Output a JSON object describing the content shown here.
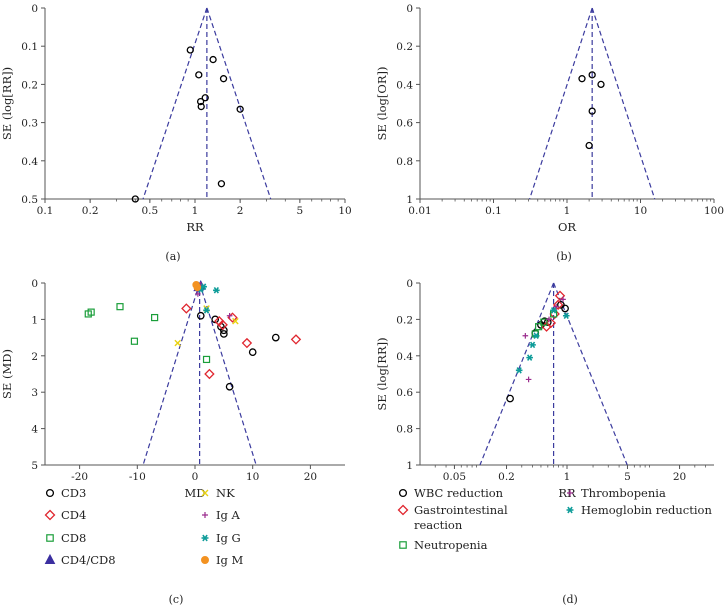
{
  "chart_data": [
    {
      "panel": "(a)",
      "type": "scatter",
      "subtype": "funnel",
      "xscale": "log",
      "xlabel": "RR",
      "ylabel": "SE (log[RR])",
      "xlim": [
        0.1,
        10
      ],
      "ylim": [
        0.5,
        0
      ],
      "xticks": [
        0.1,
        0.2,
        0.5,
        1,
        2,
        5,
        10
      ],
      "xtick_labels": [
        "0.1",
        "0.2",
        "0.5",
        "1",
        "2",
        "5",
        "10"
      ],
      "yticks": [
        0,
        0.1,
        0.2,
        0.3,
        0.4,
        0.5
      ],
      "ytick_labels": [
        "0",
        "0.1",
        "0.2",
        "0.3",
        "0.4",
        "0.5"
      ],
      "pooled": 1.2,
      "points": [
        {
          "x": 0.93,
          "y": 0.11
        },
        {
          "x": 1.32,
          "y": 0.135
        },
        {
          "x": 1.06,
          "y": 0.175
        },
        {
          "x": 1.55,
          "y": 0.185
        },
        {
          "x": 1.17,
          "y": 0.235
        },
        {
          "x": 1.09,
          "y": 0.245
        },
        {
          "x": 1.1,
          "y": 0.258
        },
        {
          "x": 2.0,
          "y": 0.265
        },
        {
          "x": 1.5,
          "y": 0.46
        },
        {
          "x": 0.4,
          "y": 0.5
        }
      ]
    },
    {
      "panel": "(b)",
      "type": "scatter",
      "subtype": "funnel",
      "xscale": "log",
      "xlabel": "OR",
      "ylabel": "SE (log[OR])",
      "xlim": [
        0.01,
        100
      ],
      "ylim": [
        1,
        0
      ],
      "xticks": [
        0.01,
        0.1,
        1,
        10,
        100
      ],
      "xtick_labels": [
        "0.01",
        "0.1",
        "1",
        "10",
        "100"
      ],
      "yticks": [
        0,
        0.2,
        0.4,
        0.6,
        0.8,
        1
      ],
      "ytick_labels": [
        "0",
        "0.2",
        "0.4",
        "0.6",
        "0.8",
        "1"
      ],
      "pooled": 2.2,
      "points": [
        {
          "x": 2.2,
          "y": 0.35
        },
        {
          "x": 1.6,
          "y": 0.37
        },
        {
          "x": 2.9,
          "y": 0.4
        },
        {
          "x": 2.2,
          "y": 0.54
        },
        {
          "x": 2.0,
          "y": 0.72
        }
      ]
    },
    {
      "panel": "(c)",
      "type": "scatter",
      "subtype": "funnel",
      "xscale": "linear",
      "xlabel": "MD",
      "ylabel": "SE (MD)",
      "xlim": [
        -26,
        26
      ],
      "ylim": [
        5,
        0
      ],
      "xticks": [
        -20,
        -10,
        0,
        10,
        20
      ],
      "xtick_labels": [
        "-20",
        "-10",
        "0",
        "10",
        "20"
      ],
      "yticks": [
        0,
        1,
        2,
        3,
        4,
        5
      ],
      "ytick_labels": [
        "0",
        "1",
        "2",
        "3",
        "4",
        "5"
      ],
      "pooled": 0.8,
      "series": [
        {
          "name": "CD3",
          "marker": "circle",
          "color": "#000000",
          "points": [
            [
              1,
              0.9
            ],
            [
              3.5,
              1.0
            ],
            [
              5,
              1.3
            ],
            [
              5,
              1.4
            ],
            [
              6,
              2.85
            ],
            [
              10,
              1.9
            ],
            [
              14,
              1.5
            ],
            [
              4.5,
              1.2
            ]
          ]
        },
        {
          "name": "CD4",
          "marker": "diamond",
          "color": "#e0262f",
          "points": [
            [
              -1.5,
              0.7
            ],
            [
              4.2,
              1.05
            ],
            [
              4.8,
              1.15
            ],
            [
              6.5,
              0.95
            ],
            [
              9,
              1.65
            ],
            [
              17.5,
              1.55
            ],
            [
              2.5,
              2.5
            ]
          ]
        },
        {
          "name": "CD8",
          "marker": "square",
          "color": "#1a9e3a",
          "points": [
            [
              -18.5,
              0.85
            ],
            [
              -18,
              0.8
            ],
            [
              -13,
              0.65
            ],
            [
              -7,
              0.95
            ],
            [
              -10.5,
              1.6
            ],
            [
              2,
              2.1
            ]
          ]
        },
        {
          "name": "CD4/CD8",
          "marker": "triangle",
          "color": "#3b2fa0",
          "points": [
            [
              0.6,
              0.12
            ],
            [
              1.0,
              0.08
            ]
          ]
        },
        {
          "name": "NK",
          "marker": "x",
          "color": "#e8d10f",
          "points": [
            [
              7,
              1.05
            ],
            [
              -3,
              1.65
            ],
            [
              2,
              0.7
            ]
          ]
        },
        {
          "name": "Ig A",
          "marker": "plus",
          "color": "#9b2c8e",
          "points": [
            [
              0.6,
              0.1
            ],
            [
              0.9,
              0.15
            ],
            [
              1.3,
              0.1
            ],
            [
              0.5,
              0.3
            ],
            [
              6,
              0.9
            ],
            [
              1,
              0.05
            ]
          ]
        },
        {
          "name": "Ig G",
          "marker": "asterisk",
          "color": "#0e9c99",
          "points": [
            [
              2,
              0.75
            ],
            [
              3.7,
              0.2
            ],
            [
              1,
              0.18
            ],
            [
              1.5,
              0.1
            ]
          ]
        },
        {
          "name": "Ig M",
          "marker": "circle-filled",
          "color": "#f39221",
          "points": [
            [
              0.2,
              0.05
            ],
            [
              0.4,
              0.12
            ]
          ]
        }
      ]
    },
    {
      "panel": "(d)",
      "type": "scatter",
      "subtype": "funnel",
      "xscale": "log",
      "xlabel": "RR",
      "ylabel": "SE (log[RR])",
      "xlim": [
        0.02,
        50
      ],
      "ylim": [
        1,
        0
      ],
      "xticks": [
        0.05,
        0.2,
        1,
        5,
        20
      ],
      "xtick_labels": [
        "0.05",
        "0.2",
        "1",
        "5",
        "20"
      ],
      "yticks": [
        0,
        0.2,
        0.4,
        0.6,
        0.8,
        1
      ],
      "ytick_labels": [
        "0",
        "0.2",
        "0.4",
        "0.6",
        "0.8",
        "1"
      ],
      "pooled": 0.7,
      "series": [
        {
          "name": "WBC reduction",
          "marker": "circle",
          "color": "#000000",
          "points": [
            [
              0.22,
              0.635
            ],
            [
              0.43,
              0.275
            ],
            [
              0.55,
              0.21
            ],
            [
              0.6,
              0.215
            ],
            [
              0.85,
              0.12
            ],
            [
              0.95,
              0.14
            ],
            [
              0.5,
              0.23
            ]
          ]
        },
        {
          "name": "Gastrointestinal reaction",
          "marker": "diamond",
          "color": "#e0262f",
          "points": [
            [
              0.83,
              0.07
            ],
            [
              0.72,
              0.17
            ],
            [
              0.65,
              0.22
            ],
            [
              0.58,
              0.24
            ],
            [
              0.79,
              0.12
            ]
          ]
        },
        {
          "name": "Neutropenia",
          "marker": "square",
          "color": "#1a9e3a",
          "points": [
            [
              0.43,
              0.28
            ],
            [
              0.54,
              0.215
            ],
            [
              0.47,
              0.24
            ],
            [
              0.7,
              0.17
            ]
          ]
        },
        {
          "name": "Thrombopenia",
          "marker": "plus",
          "color": "#9b2c8e",
          "points": [
            [
              0.36,
              0.53
            ],
            [
              0.33,
              0.29
            ],
            [
              0.62,
              0.2
            ],
            [
              0.75,
              0.13
            ],
            [
              0.9,
              0.09
            ]
          ]
        },
        {
          "name": "Hemoglobin reduction",
          "marker": "asterisk",
          "color": "#0e9c99",
          "points": [
            [
              0.28,
              0.48
            ],
            [
              0.37,
              0.41
            ],
            [
              0.4,
              0.34
            ],
            [
              0.44,
              0.29
            ],
            [
              0.98,
              0.18
            ],
            [
              0.7,
              0.15
            ]
          ]
        }
      ]
    }
  ],
  "styles": {
    "funnel_color": "#3b3b9e",
    "axis_color": "#555555"
  }
}
